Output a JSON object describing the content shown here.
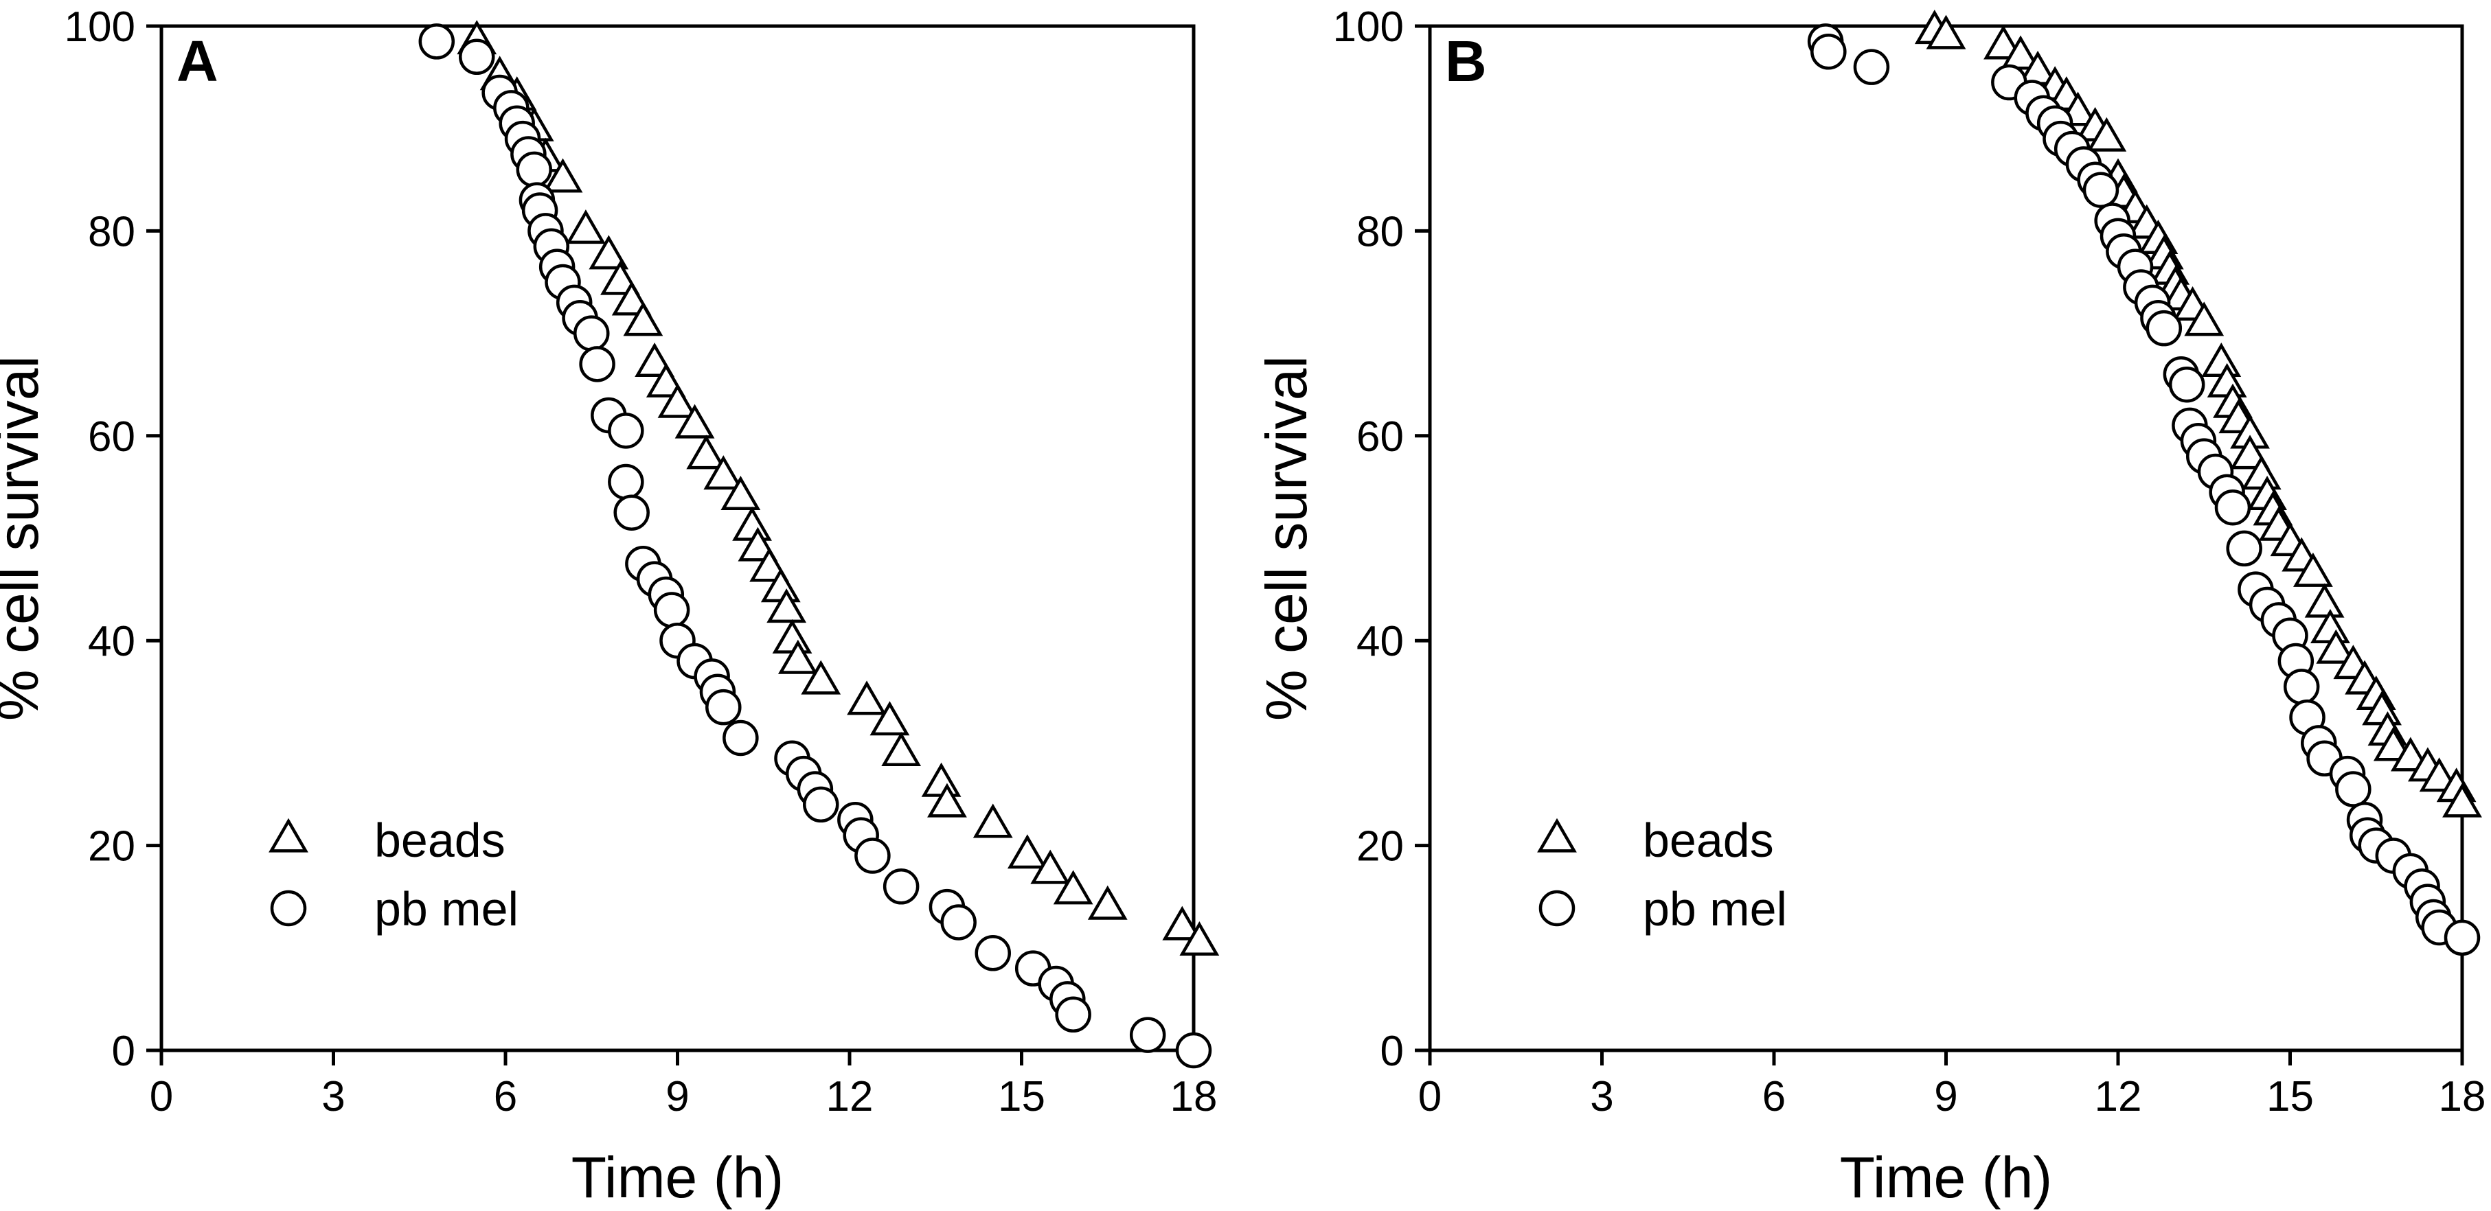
{
  "chart_data": [
    {
      "type": "scatter",
      "panel_label": "A",
      "xlabel": "Time (h)",
      "ylabel": "% cell survival",
      "xlim": [
        0,
        18
      ],
      "ylim": [
        0,
        100
      ],
      "xticks": [
        "0",
        "3",
        "6",
        "9",
        "12",
        "15",
        "18"
      ],
      "yticks": [
        "0",
        "20",
        "40",
        "60",
        "80",
        "100"
      ],
      "grid": false,
      "legend_position": "bottom-left",
      "series": [
        {
          "name": "beads",
          "marker": "triangle",
          "points": [
            [
              5.5,
              98.5
            ],
            [
              5.9,
              95
            ],
            [
              6.2,
              93
            ],
            [
              6.5,
              90
            ],
            [
              6.7,
              87
            ],
            [
              7.0,
              85
            ],
            [
              7.4,
              80
            ],
            [
              7.8,
              77.5
            ],
            [
              8.0,
              75
            ],
            [
              8.2,
              73
            ],
            [
              8.4,
              71
            ],
            [
              8.6,
              67
            ],
            [
              8.8,
              65
            ],
            [
              9.0,
              63
            ],
            [
              9.3,
              61
            ],
            [
              9.5,
              58
            ],
            [
              9.8,
              56
            ],
            [
              10.1,
              54
            ],
            [
              10.3,
              51
            ],
            [
              10.4,
              49
            ],
            [
              10.6,
              47
            ],
            [
              10.8,
              45
            ],
            [
              10.9,
              43
            ],
            [
              11.0,
              40
            ],
            [
              11.1,
              38
            ],
            [
              11.5,
              36
            ],
            [
              12.3,
              34
            ],
            [
              12.7,
              32
            ],
            [
              12.9,
              29
            ],
            [
              13.6,
              26
            ],
            [
              13.7,
              24
            ],
            [
              14.5,
              22
            ],
            [
              15.1,
              19
            ],
            [
              15.5,
              17.5
            ],
            [
              15.9,
              15.5
            ],
            [
              16.5,
              14
            ],
            [
              17.8,
              12
            ],
            [
              18.1,
              10.5
            ]
          ]
        },
        {
          "name": "pb mel",
          "marker": "circle",
          "points": [
            [
              4.8,
              98.5
            ],
            [
              5.5,
              97
            ],
            [
              5.9,
              93.5
            ],
            [
              6.1,
              92
            ],
            [
              6.2,
              90.5
            ],
            [
              6.3,
              89
            ],
            [
              6.4,
              87.5
            ],
            [
              6.5,
              86
            ],
            [
              6.55,
              83
            ],
            [
              6.6,
              82
            ],
            [
              6.7,
              80
            ],
            [
              6.8,
              78.5
            ],
            [
              6.9,
              76.5
            ],
            [
              7.0,
              75
            ],
            [
              7.2,
              73
            ],
            [
              7.3,
              71.5
            ],
            [
              7.5,
              70
            ],
            [
              7.6,
              67
            ],
            [
              7.8,
              62
            ],
            [
              8.1,
              60.5
            ],
            [
              8.1,
              55.5
            ],
            [
              8.2,
              52.5
            ],
            [
              8.4,
              47.5
            ],
            [
              8.6,
              46
            ],
            [
              8.8,
              44.5
            ],
            [
              8.9,
              43
            ],
            [
              9.0,
              40
            ],
            [
              9.3,
              38
            ],
            [
              9.6,
              36.5
            ],
            [
              9.7,
              35
            ],
            [
              9.8,
              33.5
            ],
            [
              10.1,
              30.5
            ],
            [
              11.0,
              28.5
            ],
            [
              11.2,
              27
            ],
            [
              11.4,
              25.5
            ],
            [
              11.5,
              24
            ],
            [
              12.1,
              22.5
            ],
            [
              12.2,
              21
            ],
            [
              12.4,
              19
            ],
            [
              12.9,
              16
            ],
            [
              13.7,
              14
            ],
            [
              13.9,
              12.5
            ],
            [
              14.5,
              9.5
            ],
            [
              15.2,
              8
            ],
            [
              15.6,
              6.5
            ],
            [
              15.8,
              5
            ],
            [
              15.9,
              3.5
            ],
            [
              17.2,
              1.5
            ],
            [
              18.0,
              0
            ]
          ]
        }
      ]
    },
    {
      "type": "scatter",
      "panel_label": "B",
      "xlabel": "Time (h)",
      "ylabel": "% cell survival",
      "xlim": [
        0,
        18
      ],
      "ylim": [
        0,
        100
      ],
      "xticks": [
        "0",
        "3",
        "6",
        "9",
        "12",
        "15",
        "18"
      ],
      "yticks": [
        "0",
        "20",
        "40",
        "60",
        "80",
        "100"
      ],
      "grid": false,
      "legend_position": "bottom-left",
      "series": [
        {
          "name": "beads",
          "marker": "triangle",
          "points": [
            [
              8.8,
              99.5
            ],
            [
              9.0,
              99
            ],
            [
              10.0,
              98
            ],
            [
              10.3,
              97
            ],
            [
              10.6,
              95.5
            ],
            [
              10.9,
              94
            ],
            [
              11.1,
              93
            ],
            [
              11.3,
              91.5
            ],
            [
              11.6,
              90
            ],
            [
              11.8,
              89
            ],
            [
              12.0,
              85
            ],
            [
              12.1,
              83.5
            ],
            [
              12.3,
              82
            ],
            [
              12.5,
              80.5
            ],
            [
              12.7,
              79
            ],
            [
              12.8,
              77.5
            ],
            [
              12.9,
              76
            ],
            [
              13.0,
              74.5
            ],
            [
              13.1,
              73.5
            ],
            [
              13.3,
              72.5
            ],
            [
              13.5,
              71
            ],
            [
              13.8,
              67
            ],
            [
              13.9,
              65
            ],
            [
              14.0,
              63
            ],
            [
              14.1,
              61.5
            ],
            [
              14.3,
              60
            ],
            [
              14.3,
              58
            ],
            [
              14.5,
              56
            ],
            [
              14.6,
              54
            ],
            [
              14.7,
              52.5
            ],
            [
              14.8,
              51
            ],
            [
              15.0,
              49.5
            ],
            [
              15.2,
              48
            ],
            [
              15.4,
              46.5
            ],
            [
              15.6,
              43.5
            ],
            [
              15.7,
              41
            ],
            [
              15.8,
              39
            ],
            [
              16.1,
              37.5
            ],
            [
              16.3,
              36
            ],
            [
              16.5,
              34.5
            ],
            [
              16.6,
              33
            ],
            [
              16.7,
              31
            ],
            [
              16.8,
              29.5
            ],
            [
              17.1,
              28.5
            ],
            [
              17.4,
              27.5
            ],
            [
              17.6,
              26.5
            ],
            [
              17.9,
              25.5
            ],
            [
              18.0,
              24
            ]
          ]
        },
        {
          "name": "pb mel",
          "marker": "circle",
          "points": [
            [
              6.9,
              98.5
            ],
            [
              6.95,
              97.5
            ],
            [
              7.7,
              96
            ],
            [
              10.1,
              94.5
            ],
            [
              10.5,
              93
            ],
            [
              10.7,
              91.5
            ],
            [
              10.9,
              90.5
            ],
            [
              11.0,
              89
            ],
            [
              11.2,
              88
            ],
            [
              11.4,
              86.5
            ],
            [
              11.6,
              85
            ],
            [
              11.7,
              84
            ],
            [
              11.9,
              81
            ],
            [
              12.0,
              79.5
            ],
            [
              12.1,
              78
            ],
            [
              12.3,
              76.5
            ],
            [
              12.4,
              74.5
            ],
            [
              12.6,
              73
            ],
            [
              12.7,
              71.5
            ],
            [
              12.8,
              70.5
            ],
            [
              13.1,
              66
            ],
            [
              13.2,
              65
            ],
            [
              13.25,
              61
            ],
            [
              13.4,
              59.5
            ],
            [
              13.5,
              58
            ],
            [
              13.7,
              56.5
            ],
            [
              13.9,
              54.5
            ],
            [
              14.0,
              53
            ],
            [
              14.2,
              49
            ],
            [
              14.4,
              45
            ],
            [
              14.6,
              43.5
            ],
            [
              14.8,
              42
            ],
            [
              15.0,
              40.5
            ],
            [
              15.1,
              38
            ],
            [
              15.2,
              35.5
            ],
            [
              15.3,
              32.5
            ],
            [
              15.5,
              30
            ],
            [
              15.6,
              28.5
            ],
            [
              16.0,
              27
            ],
            [
              16.1,
              25.5
            ],
            [
              16.3,
              22.5
            ],
            [
              16.35,
              21
            ],
            [
              16.5,
              20
            ],
            [
              16.8,
              19
            ],
            [
              17.1,
              17.5
            ],
            [
              17.3,
              16
            ],
            [
              17.4,
              14.5
            ],
            [
              17.5,
              13
            ],
            [
              17.6,
              12
            ],
            [
              18.0,
              11
            ]
          ]
        }
      ]
    }
  ]
}
